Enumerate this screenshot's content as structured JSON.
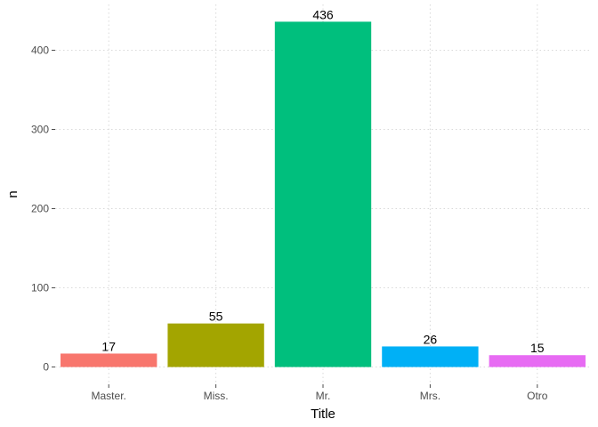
{
  "chart_data": {
    "type": "bar",
    "categories": [
      "Master.",
      "Miss.",
      "Mr.",
      "Mrs.",
      "Otro"
    ],
    "values": [
      17,
      55,
      436,
      26,
      15
    ],
    "colors": [
      "#F8766D",
      "#A3A500",
      "#00BF7D",
      "#00B0F6",
      "#E76BF3"
    ],
    "data_labels": [
      "17",
      "55",
      "436",
      "26",
      "15"
    ],
    "xlabel": "Title",
    "ylabel": "n",
    "ylim": [
      -21.8,
      457.8
    ],
    "yticks": [
      0,
      100,
      200,
      300,
      400
    ],
    "ytick_labels": [
      "0",
      "100",
      "200",
      "300",
      "400"
    ],
    "grid": true,
    "legend": "none"
  }
}
